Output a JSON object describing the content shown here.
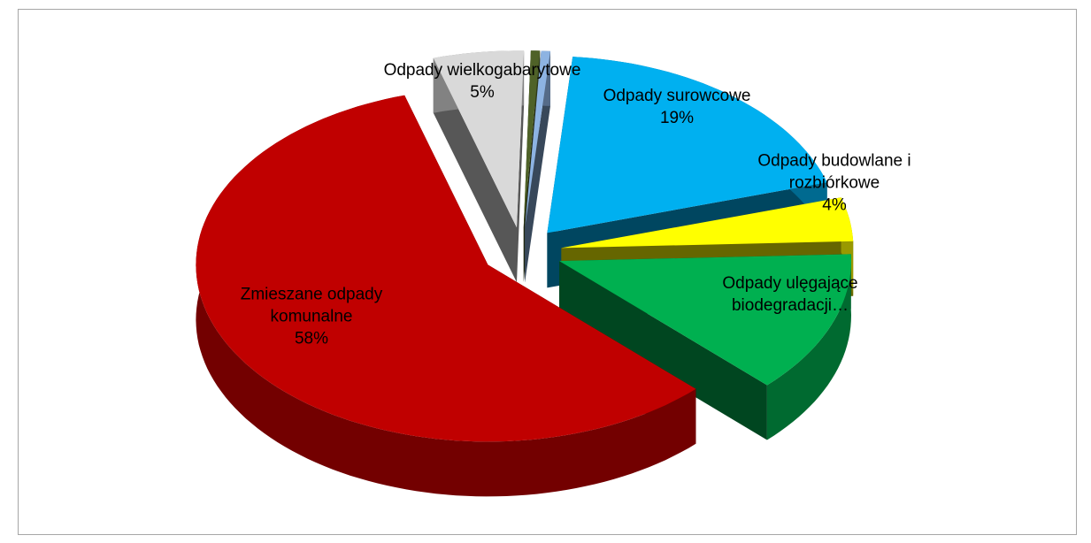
{
  "chart_data": {
    "type": "pie",
    "categories": [
      "Odpady surowcowe",
      "Odpady budowlane i rozbiórkowe",
      "Odpady ulęgające biodegradacji…",
      "Zmieszane odpady komunalne",
      "Odpady wielkogabarytowe",
      null,
      null
    ],
    "values": [
      19,
      4,
      13,
      58,
      5,
      0.5,
      0.5
    ],
    "value_labels": [
      "19%",
      "4%",
      null,
      "58%",
      "5%",
      null,
      null
    ],
    "colors": [
      "#00b0f0",
      "#ffff00",
      "#00b050",
      "#c00000",
      "#d9d9d9",
      "#4f6228",
      "#8db3e2"
    ]
  }
}
